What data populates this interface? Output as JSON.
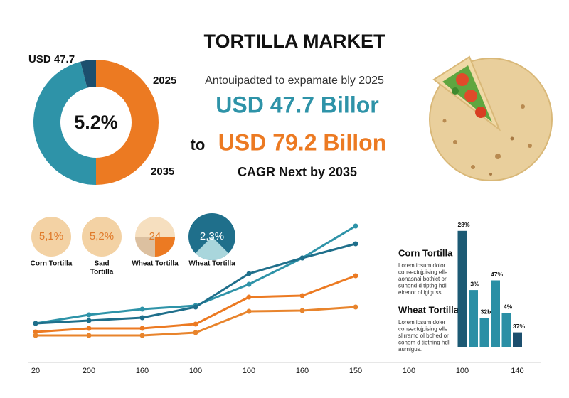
{
  "title": "TORTILLA MARKET",
  "subtitle": "Antouipadted to expamate bly 2025",
  "headline": "USD 47.7 Billor",
  "connector": "to",
  "headline2": "USD 79.2 Billon",
  "cagr_note": "CAGR Next by 2035",
  "icons": [
    {
      "value_text": "5,1%",
      "label": [
        "Corn Tortilla"
      ]
    },
    {
      "value_text": "5,2%",
      "label": [
        "Saıd",
        "Tortilla"
      ]
    },
    {
      "value_text": "24",
      "label": [
        "Wheat Tortilla"
      ]
    },
    {
      "value_text": "2,3%",
      "label": [
        "Wheat Tortilla"
      ]
    }
  ],
  "side_notes": [
    {
      "title": "Corn Tortilla",
      "lines": [
        "Lorem ipsum dolor",
        "consectujpising elle",
        "aonasnai bothict or",
        "sunend d tipthg hdl",
        "eirenor ol igiguss."
      ]
    },
    {
      "title": "Wheat Tortilla",
      "lines": [
        "Lorem ipsum doler",
        "consectujpising elle",
        "slirramd ol bohed or",
        "conem d tiptning hdl",
        "aurnigus."
      ]
    }
  ],
  "chart_data": [
    {
      "type": "pie",
      "center_label": "5.2%",
      "annotations": [
        "USD 47.7",
        "2025",
        "2035"
      ],
      "values": [
        50,
        46,
        4
      ],
      "colors": [
        "#ec7a22",
        "#2e93a8",
        "#1c4f6e"
      ]
    },
    {
      "type": "line",
      "categories": [
        "20",
        "200",
        "160",
        "100",
        "100",
        "160",
        "150",
        "100"
      ],
      "ylim": [
        0,
        100
      ],
      "series": [
        {
          "color": "#2e93a8",
          "values": [
            22.5,
            28.5,
            32.5,
            35,
            50,
            68.5,
            91,
            null
          ]
        },
        {
          "color": "#1f6f8b",
          "values": [
            22.5,
            24.5,
            26.5,
            34,
            57.5,
            68.5,
            78.5,
            null
          ]
        },
        {
          "color": "#ec7a22",
          "values": [
            16.5,
            19,
            19,
            22,
            41,
            42,
            56,
            null
          ]
        },
        {
          "color": "#e8842c",
          "values": [
            14,
            14,
            14,
            16,
            31,
            31.5,
            34,
            null
          ]
        }
      ]
    },
    {
      "type": "bar",
      "categories": [
        "100",
        null,
        null,
        null,
        null,
        "140"
      ],
      "ylim": [
        0,
        100
      ],
      "values": [
        96,
        47,
        24,
        55,
        28,
        12
      ],
      "bar_texts": [
        "28%",
        "3%",
        "32b",
        "47%",
        "4%",
        "37%"
      ],
      "colors": [
        "#1c5a74",
        "#2a8fa5",
        "#2a8fa5",
        "#2a8fa5",
        "#2a8fa5",
        "#1c4f6e"
      ]
    }
  ]
}
